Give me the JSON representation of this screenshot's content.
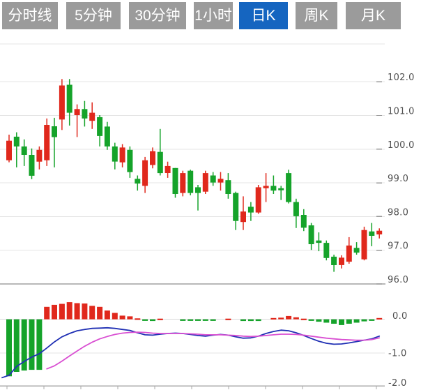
{
  "toolbar": {
    "tabs": [
      {
        "label": "分时线",
        "active": false
      },
      {
        "label": "5分钟",
        "active": false
      },
      {
        "label": "30分钟",
        "active": false
      },
      {
        "label": "1小时",
        "active": false
      },
      {
        "label": "日K",
        "active": true
      },
      {
        "label": "周K",
        "active": false
      },
      {
        "label": "月K",
        "active": false
      }
    ]
  },
  "colors": {
    "tab_bg": "#9b9b9b",
    "tab_active": "#1565c0",
    "tab_text": "#ffffff",
    "candle_up": "#e0281c",
    "candle_down": "#15a32a",
    "dif_line": "#2030b4",
    "dea_line": "#d94fd2",
    "grid": "#e4e4e4",
    "panel_divider": "#b8b8b8",
    "axis_line": "#a9a9a9",
    "tick": "#999999",
    "label_text": "#4f4f4f"
  },
  "price_axis": {
    "labels": [
      "102.0",
      "101.0",
      "100.0",
      "99.0",
      "98.0",
      "97.0",
      "96.0"
    ],
    "values": [
      102,
      101,
      100,
      99,
      98,
      97,
      96
    ]
  },
  "macd_axis": {
    "labels": [
      "0.0",
      "-1.0",
      "-2.0"
    ],
    "values": [
      0,
      -1,
      -2
    ]
  },
  "chart_data": {
    "type": "candlestick",
    "subtype": "daily-k-with-macd",
    "grid": true,
    "price_ylim": [
      95.9,
      103.1
    ],
    "macd_ylim": [
      -2.0,
      0.55
    ],
    "candles": [
      {
        "o": 99.67,
        "h": 100.43,
        "l": 99.61,
        "c": 100.25
      },
      {
        "o": 100.37,
        "h": 100.5,
        "l": 99.46,
        "c": 100.08
      },
      {
        "o": 100.08,
        "h": 100.29,
        "l": 99.5,
        "c": 99.83
      },
      {
        "o": 99.83,
        "h": 100.02,
        "l": 99.11,
        "c": 99.21
      },
      {
        "o": 99.63,
        "h": 100.08,
        "l": 99.4,
        "c": 99.98
      },
      {
        "o": 99.67,
        "h": 100.91,
        "l": 99.5,
        "c": 100.72
      },
      {
        "o": 100.68,
        "h": 100.93,
        "l": 99.46,
        "c": 100.36
      },
      {
        "o": 100.88,
        "h": 102.08,
        "l": 100.57,
        "c": 101.89
      },
      {
        "o": 101.91,
        "h": 102.08,
        "l": 100.7,
        "c": 101.08
      },
      {
        "o": 101.01,
        "h": 101.33,
        "l": 100.36,
        "c": 101.19
      },
      {
        "o": 101.19,
        "h": 101.43,
        "l": 100.67,
        "c": 100.91
      },
      {
        "o": 100.84,
        "h": 101.39,
        "l": 100.6,
        "c": 101.08
      },
      {
        "o": 100.95,
        "h": 101.01,
        "l": 100.08,
        "c": 100.39
      },
      {
        "o": 100.67,
        "h": 100.81,
        "l": 99.98,
        "c": 100.08
      },
      {
        "o": 100.08,
        "h": 100.19,
        "l": 99.4,
        "c": 99.63
      },
      {
        "o": 99.61,
        "h": 100.15,
        "l": 99.46,
        "c": 100.05
      },
      {
        "o": 99.98,
        "h": 100.08,
        "l": 99.15,
        "c": 99.32
      },
      {
        "o": 99.12,
        "h": 99.22,
        "l": 98.77,
        "c": 98.98
      },
      {
        "o": 98.91,
        "h": 99.77,
        "l": 98.7,
        "c": 99.67
      },
      {
        "o": 99.53,
        "h": 100.05,
        "l": 99.43,
        "c": 99.94
      },
      {
        "o": 99.92,
        "h": 100.6,
        "l": 99.22,
        "c": 99.29
      },
      {
        "o": 99.29,
        "h": 99.63,
        "l": 99.15,
        "c": 99.5
      },
      {
        "o": 99.44,
        "h": 99.44,
        "l": 98.56,
        "c": 98.67
      },
      {
        "o": 98.7,
        "h": 99.36,
        "l": 98.6,
        "c": 99.29
      },
      {
        "o": 99.36,
        "h": 99.39,
        "l": 98.63,
        "c": 98.7
      },
      {
        "o": 98.87,
        "h": 98.94,
        "l": 98.18,
        "c": 98.7
      },
      {
        "o": 98.74,
        "h": 99.36,
        "l": 98.67,
        "c": 99.29
      },
      {
        "o": 99.22,
        "h": 99.32,
        "l": 98.91,
        "c": 99.01
      },
      {
        "o": 99.01,
        "h": 99.32,
        "l": 98.77,
        "c": 99.12
      },
      {
        "o": 99.08,
        "h": 99.29,
        "l": 98.53,
        "c": 98.67
      },
      {
        "o": 98.7,
        "h": 98.74,
        "l": 97.6,
        "c": 97.87
      },
      {
        "o": 97.84,
        "h": 98.6,
        "l": 97.6,
        "c": 98.15
      },
      {
        "o": 98.29,
        "h": 98.43,
        "l": 97.87,
        "c": 98.12
      },
      {
        "o": 98.12,
        "h": 98.94,
        "l": 98.08,
        "c": 98.87
      },
      {
        "o": 98.84,
        "h": 99.29,
        "l": 98.43,
        "c": 98.91
      },
      {
        "o": 98.91,
        "h": 99.22,
        "l": 98.67,
        "c": 98.77
      },
      {
        "o": 98.84,
        "h": 98.91,
        "l": 98.49,
        "c": 98.78
      },
      {
        "o": 99.29,
        "h": 99.39,
        "l": 98.39,
        "c": 98.43
      },
      {
        "o": 98.43,
        "h": 98.53,
        "l": 97.66,
        "c": 98.01
      },
      {
        "o": 98.05,
        "h": 98.22,
        "l": 97.57,
        "c": 97.67
      },
      {
        "o": 97.74,
        "h": 97.81,
        "l": 97.01,
        "c": 97.18
      },
      {
        "o": 97.29,
        "h": 97.53,
        "l": 96.97,
        "c": 97.22
      },
      {
        "o": 97.22,
        "h": 97.29,
        "l": 96.7,
        "c": 96.77
      },
      {
        "o": 96.81,
        "h": 96.87,
        "l": 96.36,
        "c": 96.56
      },
      {
        "o": 96.56,
        "h": 96.85,
        "l": 96.46,
        "c": 96.78
      },
      {
        "o": 96.66,
        "h": 97.39,
        "l": 96.6,
        "c": 97.14
      },
      {
        "o": 97.07,
        "h": 97.24,
        "l": 96.87,
        "c": 96.93
      },
      {
        "o": 96.73,
        "h": 97.7,
        "l": 96.7,
        "c": 97.6
      },
      {
        "o": 97.56,
        "h": 97.81,
        "l": 97.12,
        "c": 97.43
      },
      {
        "o": 97.47,
        "h": 97.65,
        "l": 97.35,
        "c": 97.58
      }
    ],
    "macd": {
      "hist": [
        -1.69,
        -1.56,
        -1.52,
        -1.5,
        -1.5,
        0.37,
        0.43,
        0.46,
        0.51,
        0.48,
        0.47,
        0.4,
        0.37,
        0.26,
        0.19,
        0.11,
        0.09,
        0.03,
        -0.04,
        -0.05,
        0.02,
        0,
        0,
        -0.03,
        -0.03,
        -0.03,
        -0.03,
        -0.04,
        0,
        0.02,
        0,
        -0.05,
        -0.05,
        -0.05,
        0,
        0.04,
        0.05,
        0.1,
        0.06,
        0.02,
        -0.02,
        -0.07,
        -0.1,
        -0.13,
        -0.17,
        -0.13,
        -0.1,
        -0.06,
        -0.03,
        0.04
      ],
      "dif": [
        -1.66,
        -1.4,
        -1.25,
        -1.12,
        -1.02,
        -0.85,
        -0.67,
        -0.52,
        -0.42,
        -0.34,
        -0.3,
        -0.27,
        -0.26,
        -0.25,
        -0.27,
        -0.3,
        -0.33,
        -0.4,
        -0.46,
        -0.47,
        -0.44,
        -0.42,
        -0.41,
        -0.42,
        -0.45,
        -0.48,
        -0.5,
        -0.47,
        -0.45,
        -0.47,
        -0.52,
        -0.56,
        -0.55,
        -0.5,
        -0.42,
        -0.36,
        -0.32,
        -0.34,
        -0.4,
        -0.48,
        -0.57,
        -0.65,
        -0.71,
        -0.74,
        -0.73,
        -0.7,
        -0.66,
        -0.62,
        -0.58,
        -0.5
      ],
      "dif_lead_value": -1.73,
      "dea": [
        null,
        null,
        null,
        null,
        null,
        -1.47,
        -1.38,
        -1.24,
        -1.09,
        -0.94,
        -0.8,
        -0.68,
        -0.58,
        -0.51,
        -0.45,
        -0.41,
        -0.39,
        -0.38,
        -0.39,
        -0.41,
        -0.42,
        -0.42,
        -0.42,
        -0.42,
        -0.43,
        -0.44,
        -0.46,
        -0.46,
        -0.46,
        -0.47,
        -0.48,
        -0.5,
        -0.51,
        -0.5,
        -0.48,
        -0.46,
        -0.44,
        -0.44,
        -0.45,
        -0.47,
        -0.5,
        -0.53,
        -0.56,
        -0.58,
        -0.6,
        -0.61,
        -0.62,
        -0.62,
        -0.6,
        -0.55
      ]
    }
  }
}
